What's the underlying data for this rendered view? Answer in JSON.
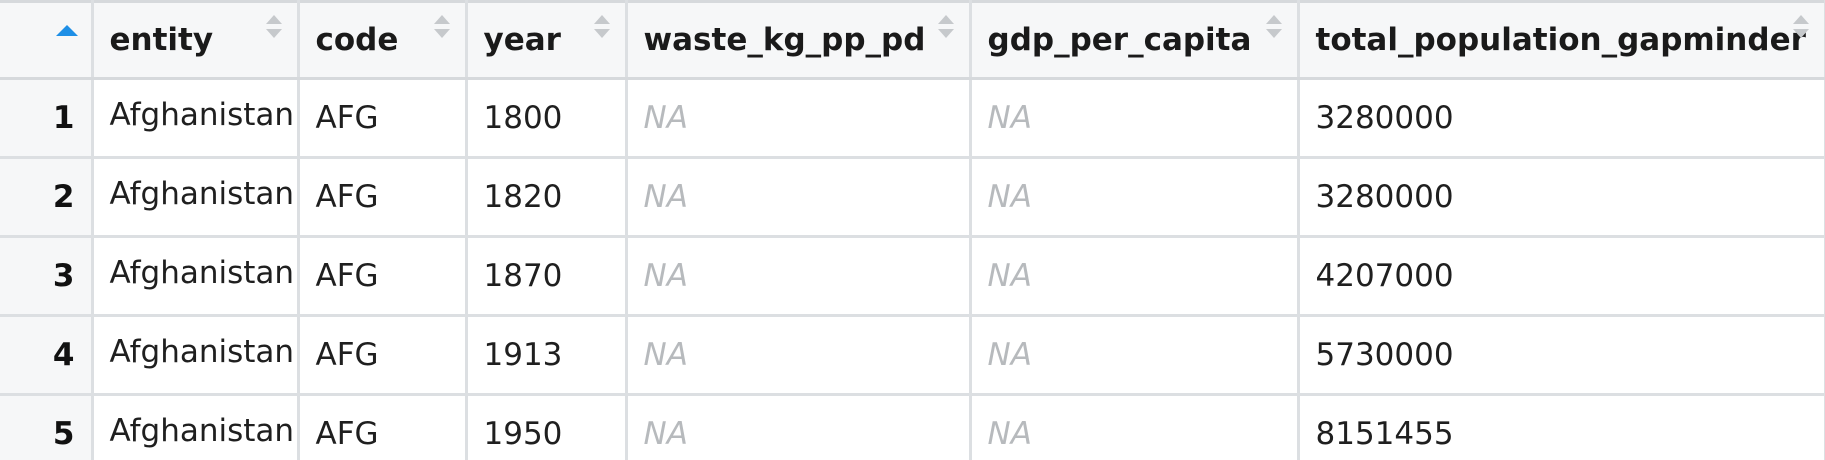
{
  "columns": [
    {
      "key": "entity",
      "label": "entity"
    },
    {
      "key": "code",
      "label": "code"
    },
    {
      "key": "year",
      "label": "year"
    },
    {
      "key": "waste",
      "label": "waste_kg_pp_pd"
    },
    {
      "key": "gdp",
      "label": "gdp_per_capita"
    },
    {
      "key": "pop",
      "label": "total_population_gapminder"
    }
  ],
  "rows": [
    {
      "num": "1",
      "entity": "Afghanistan",
      "code": "AFG",
      "year": "1800",
      "waste": "NA",
      "gdp": "NA",
      "pop": "3280000"
    },
    {
      "num": "2",
      "entity": "Afghanistan",
      "code": "AFG",
      "year": "1820",
      "waste": "NA",
      "gdp": "NA",
      "pop": "3280000"
    },
    {
      "num": "3",
      "entity": "Afghanistan",
      "code": "AFG",
      "year": "1870",
      "waste": "NA",
      "gdp": "NA",
      "pop": "4207000"
    },
    {
      "num": "4",
      "entity": "Afghanistan",
      "code": "AFG",
      "year": "1913",
      "waste": "NA",
      "gdp": "NA",
      "pop": "5730000"
    },
    {
      "num": "5",
      "entity": "Afghanistan",
      "code": "AFG",
      "year": "1950",
      "waste": "NA",
      "gdp": "NA",
      "pop": "8151455"
    }
  ],
  "colors": {
    "sort_active": "#1e8fe6",
    "header_bg": "#f6f7f8",
    "na_text": "#b7babd",
    "grid_line": "#dcdfe2"
  },
  "icons": {
    "rownum_sort": "sort-ascending-icon",
    "column_sort": "sort-arrows-icon"
  }
}
